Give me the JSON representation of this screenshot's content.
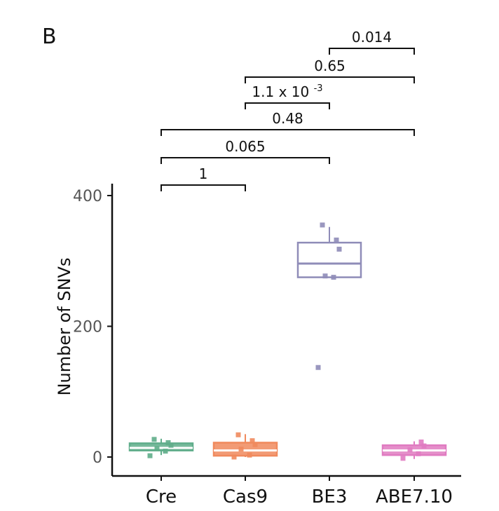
{
  "panel_label": "B",
  "chart_data": {
    "type": "box",
    "ylabel": "Number of SNVs",
    "xlabel": "",
    "categories": [
      "Cre",
      "Cas9",
      "BE3",
      "ABE7.10"
    ],
    "ylim": [
      0,
      400
    ],
    "yticks": [
      0,
      200,
      400
    ],
    "grid": false,
    "legend": "none",
    "boxes": [
      {
        "category": "Cre",
        "color": "#5fad8a",
        "q1": 10,
        "median": 14,
        "q3": 21,
        "whisker_low": 3,
        "whisker_high": 28,
        "points": [
          2,
          9,
          13,
          18,
          22,
          27
        ]
      },
      {
        "category": "Cas9",
        "color": "#f08a5d",
        "q1": 2,
        "median": 10,
        "q3": 22,
        "whisker_low": 0,
        "whisker_high": 35,
        "points": [
          0,
          3,
          12,
          19,
          25,
          34
        ]
      },
      {
        "category": "BE3",
        "color": "#8f8cb8",
        "q1": 275,
        "median": 296,
        "q3": 328,
        "whisker_low": 275,
        "whisker_high": 352,
        "points": [
          137,
          275,
          277,
          318,
          332,
          355
        ]
      },
      {
        "category": "ABE7.10",
        "color": "#e07bc1",
        "q1": 3,
        "median": 10,
        "q3": 18,
        "whisker_low": -3,
        "whisker_high": 24,
        "points": [
          -2,
          5,
          11,
          17,
          23
        ]
      }
    ],
    "comparisons": [
      {
        "from": "Cre",
        "to": "Cas9",
        "label": "1"
      },
      {
        "from": "Cre",
        "to": "BE3",
        "label": "0.065"
      },
      {
        "from": "Cre",
        "to": "ABE7.10",
        "label": "0.48"
      },
      {
        "from": "Cas9",
        "to": "BE3",
        "label_base": "1.1 x 10",
        "label_exp": "-3"
      },
      {
        "from": "Cas9",
        "to": "ABE7.10",
        "label": "0.65"
      },
      {
        "from": "BE3",
        "to": "ABE7.10",
        "label": "0.014"
      }
    ]
  }
}
